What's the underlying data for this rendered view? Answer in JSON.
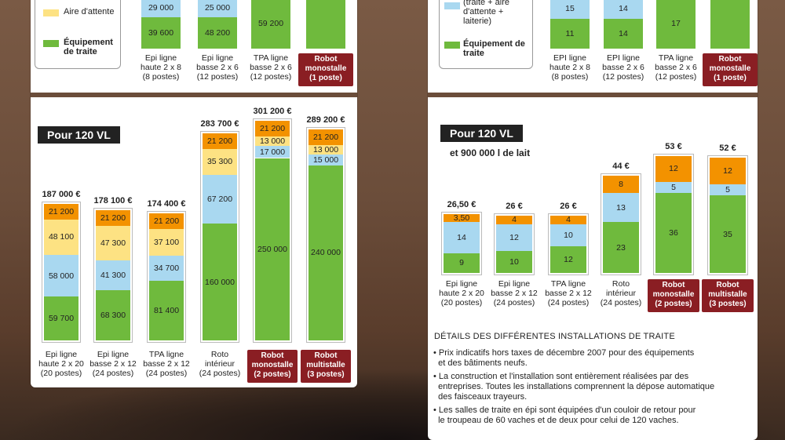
{
  "colors": {
    "orange": "#f39200",
    "yellow": "#fde283",
    "blue": "#a9d8f0",
    "green": "#6fba3d",
    "robot": "#8a1e23"
  },
  "legend_left": {
    "items": [
      {
        "label": "Aire d'attente",
        "color": "yellow"
      },
      {
        "label": "Équipement de traite",
        "color": "green"
      }
    ]
  },
  "legend_right": {
    "items": [
      {
        "label": "(traite + aire d'attente + laiterie)",
        "color": "blue"
      },
      {
        "label": "Équipement de traite",
        "color": "green"
      }
    ]
  },
  "top_left": {
    "bars": [
      {
        "values": [
          "29 000",
          "39 600"
        ],
        "label": [
          "Epi ligne",
          "haute 2 x 8",
          "(8 postes)"
        ],
        "robot": false
      },
      {
        "values": [
          "25 000",
          "48 200"
        ],
        "label": [
          "Epi ligne",
          "basse 2 x 6",
          "(12 postes)"
        ],
        "robot": false
      },
      {
        "values": [
          "",
          "59 200"
        ],
        "label": [
          "TPA ligne",
          "basse 2 x 6",
          "(12 postes)"
        ],
        "robot": false
      },
      {
        "values": [
          "",
          ""
        ],
        "label": [
          "Robot",
          "monostalle",
          "(1 poste)"
        ],
        "robot": true
      }
    ]
  },
  "top_right": {
    "bars": [
      {
        "values": [
          "15",
          "11"
        ],
        "label": [
          "EPI ligne",
          "haute 2 x 8",
          "(8 postes)"
        ],
        "robot": false
      },
      {
        "values": [
          "14",
          "14"
        ],
        "label": [
          "EPI ligne",
          "basse 2 x 6",
          "(12 postes)"
        ],
        "robot": false
      },
      {
        "values": [
          "",
          "17"
        ],
        "label": [
          "TPA ligne",
          "basse 2 x 6",
          "(12 postes)"
        ],
        "robot": false
      },
      {
        "values": [
          "",
          ""
        ],
        "label": [
          "Robot",
          "monostalle",
          "(1 poste)"
        ],
        "robot": true
      }
    ]
  },
  "chart_data": [
    {
      "type": "bar",
      "title": "Pour 120 VL",
      "categories": [
        "Epi ligne haute 2 x 20 (20 postes)",
        "Epi ligne basse 2 x 12 (24 postes)",
        "TPA ligne basse 2 x 12 (24 postes)",
        "Roto intérieur (24 postes)",
        "Robot monostalle (2 postes)",
        "Robot multistalle (3 postes)"
      ],
      "totals": [
        "187 000 €",
        "178 100 €",
        "174 400 €",
        "283 700 €",
        "301 200 €",
        "289 200 €"
      ],
      "series": [
        {
          "color": "green",
          "values": [
            59700,
            68300,
            81400,
            160000,
            250000,
            240000
          ],
          "labels": [
            "59 700",
            "68 300",
            "81 400",
            "160 000",
            "250 000",
            "240 000"
          ]
        },
        {
          "color": "blue",
          "values": [
            58000,
            41300,
            34700,
            67200,
            17000,
            15000
          ],
          "labels": [
            "58 000",
            "41 300",
            "34 700",
            "67 200",
            "17 000",
            "15 000"
          ]
        },
        {
          "color": "yellow",
          "values": [
            48100,
            47300,
            37100,
            35300,
            13000,
            13000
          ],
          "labels": [
            "48 100",
            "47 300",
            "37 100",
            "35 300",
            "13 000",
            "13 000"
          ]
        },
        {
          "color": "orange",
          "values": [
            21200,
            21200,
            21200,
            21200,
            21200,
            21200
          ],
          "labels": [
            "21 200",
            "21 200",
            "21 200",
            "21 200",
            "21 200",
            "21 200"
          ]
        }
      ],
      "robot": [
        false,
        false,
        false,
        false,
        true,
        true
      ]
    },
    {
      "type": "bar",
      "title": "Pour 120 VL",
      "subtitle": "et 900 000 l de lait",
      "categories": [
        "Epi ligne haute 2 x 20 (20 postes)",
        "Epi ligne basse 2 x 12 (24 postes)",
        "TPA ligne basse 2 x 12 (24 postes)",
        "Roto intérieur (24 postes)",
        "Robot monostalle (2 postes)",
        "Robot multistalle (3 postes)"
      ],
      "totals": [
        "26,50 €",
        "26 €",
        "26 €",
        "44 €",
        "53 €",
        "52 €"
      ],
      "series": [
        {
          "color": "green",
          "values": [
            9,
            10,
            12,
            23,
            36,
            35
          ],
          "labels": [
            "9",
            "10",
            "12",
            "23",
            "36",
            "35"
          ]
        },
        {
          "color": "blue",
          "values": [
            14,
            12,
            10,
            13,
            5,
            5
          ],
          "labels": [
            "14",
            "12",
            "10",
            "13",
            "5",
            "5"
          ]
        },
        {
          "color": "orange",
          "values": [
            3.5,
            4,
            4,
            8,
            12,
            12
          ],
          "labels": [
            "3,50",
            "4",
            "4",
            "8",
            "12",
            "12"
          ]
        }
      ],
      "robot": [
        false,
        false,
        false,
        false,
        true,
        true
      ]
    }
  ],
  "left_labels": [
    [
      "Epi ligne",
      "haute 2 x 20",
      "(20 postes)"
    ],
    [
      "Epi ligne",
      "basse 2 x 12",
      "(24 postes)"
    ],
    [
      "TPA ligne",
      "basse 2 x 12",
      "(24 postes)"
    ],
    [
      "Roto",
      "intérieur",
      "(24 postes)"
    ],
    [
      "Robot",
      "monostalle",
      "(2 postes)"
    ],
    [
      "Robot",
      "multistalle",
      "(3 postes)"
    ]
  ],
  "right_labels": [
    [
      "Epi ligne",
      "haute 2 x 20",
      "(20 postes)"
    ],
    [
      "Epi ligne",
      "basse 2 x 12",
      "(24 postes)"
    ],
    [
      "TPA ligne",
      "basse 2 x 12",
      "(24 postes)"
    ],
    [
      "Roto",
      "intérieur",
      "(24 postes)"
    ],
    [
      "Robot",
      "monostalle",
      "(2 postes)"
    ],
    [
      "Robot",
      "multistalle",
      "(3 postes)"
    ]
  ],
  "notes": {
    "title": "DÉTAILS DES DIFFÉRENTES INSTALLATIONS DE TRAITE",
    "items": [
      [
        "Prix indicatifs hors taxes de décembre 2007 pour des équipements",
        "et des bâtiments neufs."
      ],
      [
        "La construction et l'installation sont entièrement réalisées par des",
        "entreprises. Toutes les installations comprennent la dépose automatique",
        "des faisceaux trayeurs."
      ],
      [
        "Les salles de traite en épi sont équipées d'un couloir de retour pour",
        "le troupeau  de 60 vaches et de deux pour celui de 120 vaches."
      ]
    ]
  }
}
